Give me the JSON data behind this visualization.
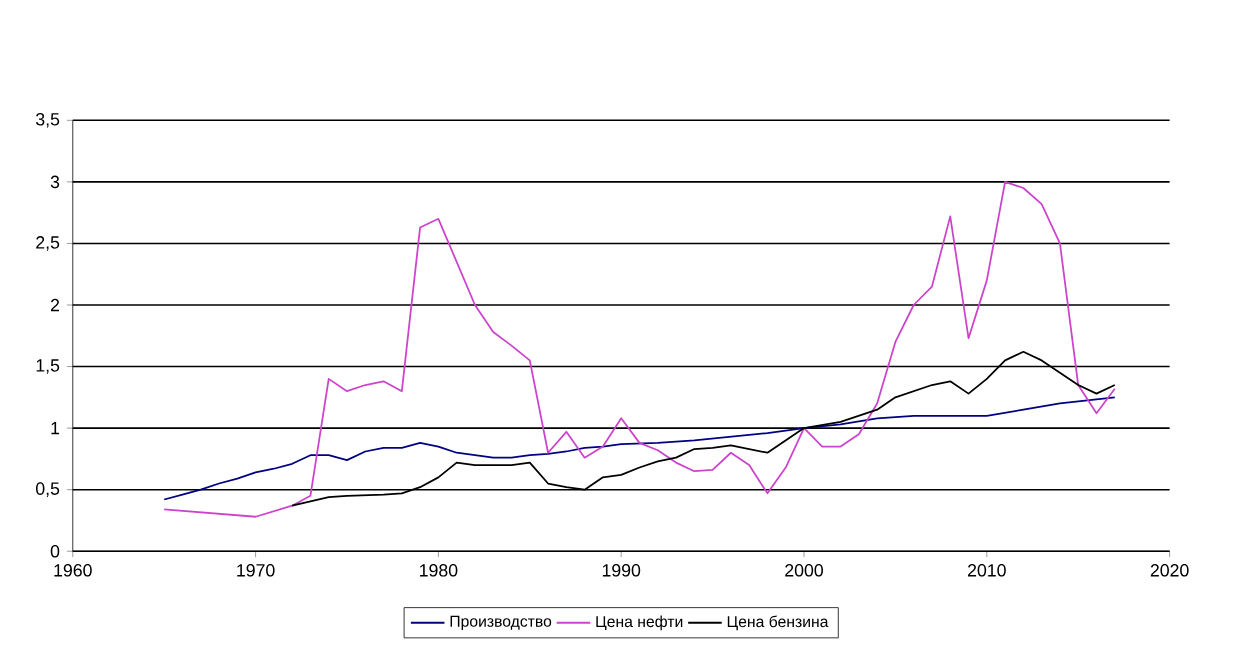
{
  "chart_data": {
    "type": "line",
    "xlim": [
      1960,
      2020
    ],
    "ylim": [
      0,
      3.5
    ],
    "xticks": [
      1960,
      1970,
      1980,
      1990,
      2000,
      2010,
      2020
    ],
    "yticks": [
      0,
      {
        "value": 0.5,
        "label": "0,5"
      },
      1,
      {
        "value": 1.5,
        "label": "1,5"
      },
      2,
      {
        "value": 2.5,
        "label": "2,5"
      },
      3,
      {
        "value": 3.5,
        "label": "3,5"
      }
    ],
    "grid": "y",
    "legend": "bottom",
    "marker": "none",
    "line_style": "solid",
    "series": [
      {
        "name": "Производство",
        "color": "#000080",
        "x": [
          1965,
          1966,
          1967,
          1968,
          1969,
          1970,
          1971,
          1972,
          1973,
          1974,
          1975,
          1976,
          1977,
          1978,
          1979,
          1980,
          1981,
          1982,
          1983,
          1984,
          1985,
          1986,
          1987,
          1988,
          1989,
          1990,
          1992,
          1994,
          1996,
          1998,
          2000,
          2002,
          2004,
          2006,
          2010,
          2012,
          2014,
          2017
        ],
        "values": [
          0.42,
          0.46,
          0.5,
          0.55,
          0.59,
          0.64,
          0.67,
          0.71,
          0.78,
          0.78,
          0.74,
          0.81,
          0.84,
          0.84,
          0.88,
          0.85,
          0.8,
          0.78,
          0.76,
          0.76,
          0.78,
          0.79,
          0.81,
          0.84,
          0.85,
          0.87,
          0.88,
          0.9,
          0.93,
          0.96,
          1.0,
          1.03,
          1.08,
          1.1,
          1.1,
          1.15,
          1.2,
          1.25
        ]
      },
      {
        "name": "Цена нефти",
        "color": "#cc44cc",
        "x": [
          1965,
          1970,
          1972,
          1973,
          1974,
          1975,
          1976,
          1977,
          1978,
          1979,
          1980,
          1981,
          1982,
          1983,
          1984,
          1985,
          1986,
          1987,
          1988,
          1989,
          1990,
          1991,
          1992,
          1993,
          1994,
          1995,
          1996,
          1997,
          1998,
          1999,
          2000,
          2001,
          2002,
          2003,
          2004,
          2005,
          2006,
          2007,
          2008,
          2009,
          2010,
          2011,
          2012,
          2013,
          2014,
          2015,
          2016,
          2017
        ],
        "values": [
          0.34,
          0.28,
          0.37,
          0.45,
          1.4,
          1.3,
          1.35,
          1.38,
          1.3,
          2.63,
          2.7,
          2.35,
          2.0,
          1.78,
          1.67,
          1.55,
          0.8,
          0.97,
          0.76,
          0.85,
          1.08,
          0.88,
          0.82,
          0.72,
          0.65,
          0.66,
          0.8,
          0.7,
          0.47,
          0.68,
          1.0,
          0.85,
          0.85,
          0.95,
          1.2,
          1.7,
          2.0,
          2.15,
          2.72,
          1.73,
          2.2,
          3.0,
          2.95,
          2.82,
          2.5,
          1.35,
          1.12,
          1.32
        ]
      },
      {
        "name": "Цена бензина",
        "color": "#000000",
        "x": [
          1972,
          1974,
          1975,
          1977,
          1978,
          1979,
          1980,
          1981,
          1982,
          1984,
          1985,
          1986,
          1987,
          1988,
          1989,
          1990,
          1991,
          1992,
          1993,
          1994,
          1995,
          1996,
          1998,
          2000,
          2002,
          2004,
          2005,
          2007,
          2008,
          2009,
          2010,
          2011,
          2012,
          2013,
          2014,
          2015,
          2016,
          2017
        ],
        "values": [
          0.37,
          0.44,
          0.45,
          0.46,
          0.47,
          0.52,
          0.6,
          0.72,
          0.7,
          0.7,
          0.72,
          0.55,
          0.52,
          0.5,
          0.6,
          0.62,
          0.68,
          0.73,
          0.76,
          0.83,
          0.84,
          0.86,
          0.8,
          1.0,
          1.05,
          1.15,
          1.25,
          1.35,
          1.38,
          1.28,
          1.4,
          1.55,
          1.62,
          1.55,
          1.45,
          1.35,
          1.28,
          1.35
        ]
      }
    ]
  }
}
